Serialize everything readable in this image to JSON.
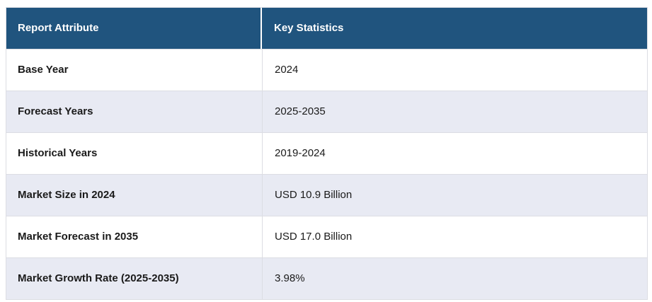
{
  "table": {
    "columns": [
      "Report Attribute",
      "Key Statistics"
    ],
    "rows": [
      {
        "attribute": "Base Year",
        "value": "2024"
      },
      {
        "attribute": "Forecast Years",
        "value": "2025-2035"
      },
      {
        "attribute": "Historical Years",
        "value": "2019-2024"
      },
      {
        "attribute": "Market Size in 2024",
        "value": "USD 10.9 Billion"
      },
      {
        "attribute": "Market Forecast in 2035",
        "value": "USD 17.0 Billion"
      },
      {
        "attribute": "Market Growth Rate (2025-2035)",
        "value": "3.98%"
      }
    ]
  },
  "colors": {
    "header_bg": "#20547E",
    "header_text": "#FFFFFF",
    "stripe_bg": "#E8EAF3",
    "row_bg": "#FFFFFF",
    "border": "#DCDDE3",
    "text": "#1A1A1A"
  }
}
